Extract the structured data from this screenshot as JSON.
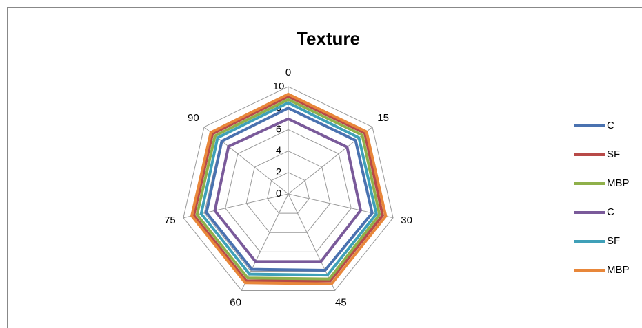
{
  "chart_data": {
    "type": "radar",
    "title": "Texture",
    "categories": [
      "0",
      "15",
      "30",
      "45",
      "60",
      "75",
      "90"
    ],
    "ylim": [
      0,
      10
    ],
    "yticks": [
      0,
      2,
      4,
      6,
      8,
      10
    ],
    "grid": true,
    "legend": "right",
    "series": [
      {
        "name": "C",
        "color": "#4a72b0",
        "values": [
          8.0,
          8.0,
          8.0,
          7.9,
          7.8,
          7.8,
          7.9
        ]
      },
      {
        "name": "SF",
        "color": "#b84a48",
        "values": [
          9.1,
          9.1,
          9.0,
          9.0,
          9.0,
          9.0,
          9.0
        ]
      },
      {
        "name": "MBP",
        "color": "#8fb04a",
        "values": [
          8.8,
          8.8,
          8.7,
          8.8,
          8.7,
          8.7,
          8.7
        ]
      },
      {
        "name": "C",
        "color": "#7a5a9a",
        "values": [
          7.0,
          7.0,
          6.9,
          7.0,
          7.0,
          7.0,
          7.1
        ]
      },
      {
        "name": "SF",
        "color": "#3fa0b8",
        "values": [
          8.5,
          8.4,
          8.4,
          8.4,
          8.3,
          8.3,
          8.4
        ]
      },
      {
        "name": "MBP",
        "color": "#e8873a",
        "values": [
          9.3,
          9.3,
          9.3,
          9.3,
          9.2,
          9.2,
          9.2
        ]
      }
    ]
  }
}
